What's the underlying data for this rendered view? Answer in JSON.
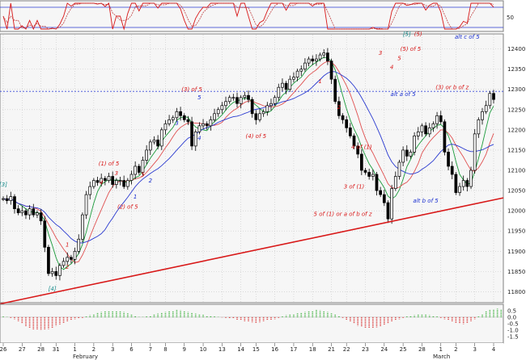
{
  "colors": {
    "price": "#000000",
    "ma_fast": "#1a9a3a",
    "ma_mid": "#e05050",
    "ma_slow": "#2a3ad0",
    "trendline": "#d81818",
    "osc_k": "#d81818",
    "osc_d": "#c04040",
    "osc_ref": "#2a3ad0",
    "macd_pos": "#38b038",
    "macd_neg": "#d83030",
    "wave_red": "#d81818",
    "wave_blue": "#1a2fd0",
    "wave_teal": "#138a8a"
  },
  "chart_data": {
    "type": "line",
    "series": [
      {
        "values": [
          12030,
          12025,
          12035,
          12005,
          11995,
          12000,
          11990,
          12005,
          11990,
          11995,
          11975,
          11910,
          11845,
          11850,
          11840,
          11865,
          11875,
          11885,
          11880,
          11900,
          11930,
          11990,
          12040,
          12060,
          12075,
          12070,
          12080,
          12075,
          12085,
          12065,
          12075,
          12075,
          12060,
          12075,
          12090,
          12110,
          12095,
          12125,
          12150,
          12170,
          12175,
          12160,
          12200,
          12215,
          12225,
          12230,
          12245,
          12235,
          12225,
          12220,
          12160,
          12195,
          12210,
          12215,
          12210,
          12225,
          12240,
          12250,
          12260,
          12270,
          12280,
          12280,
          12265,
          12280,
          12285,
          12275,
          12240,
          12225,
          12240,
          12245,
          12260,
          12265,
          12280,
          12305,
          12315,
          12300,
          12325,
          12330,
          12345,
          12350,
          12365,
          12375,
          12370,
          12375,
          12385,
          12390,
          12370,
          12325,
          12270,
          12235,
          12225,
          12205,
          12185,
          12160,
          12140,
          12100,
          12095,
          12085,
          12090,
          12050,
          12040,
          12020,
          11980,
          12055,
          12085,
          12120,
          12150,
          12135,
          12145,
          12185,
          12195,
          12210,
          12190,
          12205,
          12215,
          12235,
          12220,
          12145,
          12110,
          12090,
          12045,
          12060,
          12075,
          12060,
          12100,
          12190,
          12225,
          12245,
          12260,
          12290,
          12275
        ]
      },
      {
        "values": []
      },
      {
        "values": []
      },
      {
        "values": []
      }
    ],
    "y_ticks": [
      12400,
      12350,
      12300,
      12250,
      12200,
      12150,
      12100,
      12050,
      12000,
      11950,
      11900,
      11850,
      11800
    ],
    "ylim": [
      11775,
      12435
    ],
    "reference_level": 12295,
    "x_axis": {
      "tick_labels": [
        "26",
        "27",
        "28",
        "31",
        "1",
        "2",
        "3",
        "6",
        "7",
        "8",
        "9",
        "10",
        "13",
        "14",
        "15",
        "16",
        "17",
        "18",
        "21",
        "22",
        "23",
        "24",
        "25",
        "28",
        "1",
        "2",
        "3",
        "4"
      ],
      "month_labels": [
        "February",
        "March"
      ]
    },
    "trendline": {
      "from": [
        0,
        11770
      ],
      "to": [
        130,
        12032
      ]
    },
    "oscillator": {
      "y_ticks": [
        "50"
      ],
      "upper_level": 80,
      "lower_level": 20,
      "values": []
    },
    "macd": {
      "y_ticks": [
        "0.5",
        "0.0",
        "-0.5",
        "-1.0",
        "-1.5"
      ],
      "ylim": [
        -1.8,
        0.8
      ],
      "values": [
        0.05,
        0.02,
        -0.05,
        -0.15,
        -0.3,
        -0.5,
        -0.7,
        -0.85,
        -0.95,
        -0.98,
        -1.0,
        -0.95,
        -0.9,
        -0.8,
        -0.65,
        -0.55,
        -0.45,
        -0.35,
        -0.25,
        -0.15,
        -0.1,
        -0.05,
        0.05,
        0.15,
        0.25,
        0.35,
        0.4,
        0.45,
        0.45,
        0.5,
        0.48,
        0.45,
        0.4,
        0.3,
        0.2,
        0.1,
        0.02,
        0.02,
        0.05,
        0.12,
        0.2,
        0.28,
        0.35,
        0.4,
        0.45,
        0.5,
        0.55,
        0.52,
        0.45,
        0.4,
        0.35,
        0.28,
        0.22,
        0.18,
        0.12,
        0.08,
        0.05,
        0.02,
        -0.02,
        -0.05,
        -0.08,
        -0.12,
        -0.2,
        -0.25,
        -0.3,
        -0.35,
        -0.4,
        -0.45,
        -0.4,
        -0.3,
        -0.25,
        -0.2,
        -0.15,
        -0.05,
        0.05,
        0.15,
        0.2,
        0.25,
        0.3,
        0.35,
        0.4,
        0.45,
        0.5,
        0.55,
        0.52,
        0.45,
        0.4,
        0.3,
        0.2,
        0.1,
        -0.05,
        -0.2,
        -0.35,
        -0.5,
        -0.65,
        -0.75,
        -0.82,
        -0.85,
        -0.8,
        -0.78,
        -0.7,
        -0.6,
        -0.5,
        -0.35,
        -0.25,
        -0.15,
        -0.05,
        0.05,
        0.1,
        0.15,
        0.2,
        0.22,
        0.2,
        0.15,
        0.1,
        0.05,
        -0.05,
        -0.15,
        -0.25,
        -0.35,
        -0.45,
        -0.5,
        -0.52,
        -0.45,
        -0.3,
        -0.15,
        0.05,
        0.25,
        0.45,
        0.55,
        0.62,
        0.65,
        0.6
      ]
    },
    "annotations": [
      {
        "text": "[5]",
        "color": "teal",
        "i": 107,
        "y": 12432
      },
      {
        "text": "(5)",
        "color": "red",
        "i": 110,
        "y": 12432
      },
      {
        "text": "alt c of 5",
        "color": "blue",
        "i": 123,
        "y": 12425
      },
      {
        "text": "(5) of 5",
        "color": "red",
        "i": 108,
        "y": 12395
      },
      {
        "text": "3",
        "color": "red",
        "i": 100,
        "y": 12385
      },
      {
        "text": "5",
        "color": "red",
        "i": 105,
        "y": 12372
      },
      {
        "text": "4",
        "color": "red",
        "i": 103,
        "y": 12350
      },
      {
        "text": "(3) or b of z",
        "color": "red",
        "i": 119,
        "y": 12300
      },
      {
        "text": "(3) of 5",
        "color": "red",
        "i": 50,
        "y": 12295
      },
      {
        "text": "5",
        "color": "blue",
        "i": 52,
        "y": 12275
      },
      {
        "text": "1",
        "color": "red",
        "i": 84,
        "y": 12315
      },
      {
        "text": "2",
        "color": "red",
        "i": 89,
        "y": 12252
      },
      {
        "text": "3",
        "color": "blue",
        "i": 46,
        "y": 12212
      },
      {
        "text": "4",
        "color": "blue",
        "i": 52,
        "y": 12175
      },
      {
        "text": "alt a of 5",
        "color": "blue",
        "i": 106,
        "y": 12283
      },
      {
        "text": "(4) of 5",
        "color": "red",
        "i": 67,
        "y": 12180
      },
      {
        "text": "4 of (1)",
        "color": "red",
        "i": 95,
        "y": 12153
      },
      {
        "text": "(1) of 5",
        "color": "red",
        "i": 28,
        "y": 12112
      },
      {
        "text": "3",
        "color": "red",
        "i": 30,
        "y": 12088
      },
      {
        "text": "5",
        "color": "red",
        "i": 37,
        "y": 12085
      },
      {
        "text": "2",
        "color": "blue",
        "i": 39,
        "y": 12070
      },
      {
        "text": "4",
        "color": "red",
        "i": 26,
        "y": 12065
      },
      {
        "text": "1",
        "color": "blue",
        "i": 35,
        "y": 12030
      },
      {
        "text": "(2) of 5",
        "color": "red",
        "i": 33,
        "y": 12005
      },
      {
        "text": "3 of (1)",
        "color": "red",
        "i": 93,
        "y": 12055
      },
      {
        "text": "alt b of 5",
        "color": "blue",
        "i": 112,
        "y": 12020
      },
      {
        "text": "5 of (1) or a of b of z",
        "color": "red",
        "i": 90,
        "y": 11987
      },
      {
        "text": "1",
        "color": "red",
        "i": 17,
        "y": 11912
      },
      {
        "text": "2",
        "color": "red",
        "i": 17,
        "y": 11857
      },
      {
        "text": "[4]",
        "color": "teal",
        "i": 13,
        "y": 11803
      },
      {
        "text": "[3]",
        "color": "teal",
        "i": 0,
        "y": 12060
      }
    ]
  }
}
